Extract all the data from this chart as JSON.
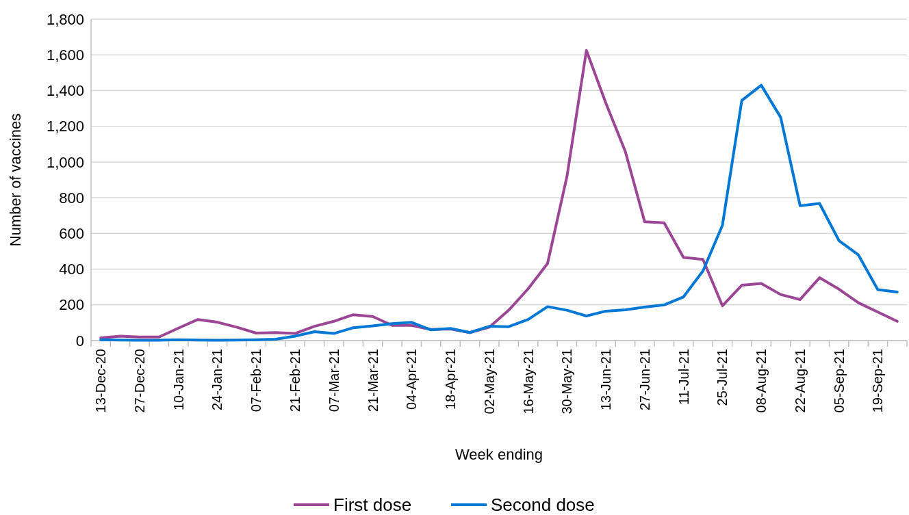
{
  "chart_data": {
    "type": "line",
    "xlabel": "Week ending",
    "ylabel": "Number of vaccines",
    "categories": [
      "13-Dec-20",
      null,
      "27-Dec-20",
      null,
      "10-Jan-21",
      null,
      "24-Jan-21",
      null,
      "07-Feb-21",
      null,
      "21-Feb-21",
      null,
      "07-Mar-21",
      null,
      "21-Mar-21",
      null,
      "04-Apr-21",
      null,
      "18-Apr-21",
      null,
      "02-May-21",
      null,
      "16-May-21",
      null,
      "30-May-21",
      null,
      "13-Jun-21",
      null,
      "27-Jun-21",
      null,
      "11-Jul-21",
      null,
      "25-Jul-21",
      null,
      "08-Aug-21",
      null,
      "22-Aug-21",
      null,
      "05-Sep-21",
      null,
      "19-Sep-21",
      null
    ],
    "series": [
      {
        "name": "First dose",
        "color": "#9b4795",
        "values": [
          15,
          25,
          20,
          20,
          70,
          118,
          103,
          75,
          42,
          45,
          40,
          80,
          108,
          145,
          135,
          85,
          85,
          62,
          65,
          45,
          75,
          170,
          290,
          432,
          920,
          1625,
          1330,
          1060,
          665,
          660,
          465,
          455,
          195,
          310,
          320,
          258,
          230,
          352,
          288,
          212,
          160,
          108
        ]
      },
      {
        "name": "Second dose",
        "color": "#0078d4",
        "values": [
          5,
          3,
          2,
          2,
          5,
          3,
          2,
          3,
          5,
          8,
          25,
          50,
          40,
          72,
          82,
          95,
          102,
          60,
          68,
          45,
          80,
          78,
          118,
          190,
          170,
          138,
          165,
          172,
          188,
          200,
          245,
          390,
          645,
          1345,
          1430,
          1250,
          755,
          768,
          560,
          480,
          285,
          272
        ]
      }
    ],
    "ylim": [
      0,
      1800
    ],
    "yticks": [
      {
        "value": 0,
        "label": "0"
      },
      {
        "value": 200,
        "label": "200"
      },
      {
        "value": 400,
        "label": "400"
      },
      {
        "value": 600,
        "label": "600"
      },
      {
        "value": 800,
        "label": "800"
      },
      {
        "value": 1000,
        "label": "1,000"
      },
      {
        "value": 1200,
        "label": "1,200"
      },
      {
        "value": 1400,
        "label": "1,400"
      },
      {
        "value": 1600,
        "label": "1,600"
      },
      {
        "value": 1800,
        "label": "1,800"
      }
    ],
    "grid": "y",
    "legend": "bottom",
    "line_style": "solid"
  }
}
